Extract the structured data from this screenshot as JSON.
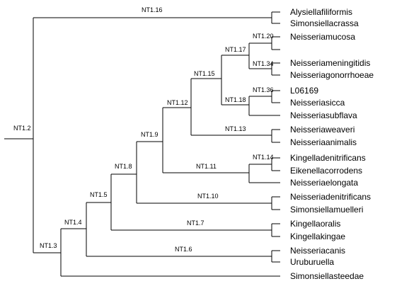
{
  "colors": {
    "line": "#000000",
    "text": "#000000",
    "background": "#ffffff"
  },
  "internal_nodes": {
    "nt1_2": "NT1.2",
    "nt1_3": "NT1.3",
    "nt1_4": "NT1.4",
    "nt1_5": "NT1.5",
    "nt1_6": "NT1.6",
    "nt1_7": "NT1.7",
    "nt1_8": "NT1.8",
    "nt1_9": "NT1.9",
    "nt1_10": "NT1.10",
    "nt1_11": "NT1.11",
    "nt1_12": "NT1.12",
    "nt1_13": "NT1.13",
    "nt1_14": "NT1.14",
    "nt1_15": "NT1.15",
    "nt1_16": "NT1.16",
    "nt1_17": "NT1.17",
    "nt1_18": "NT1.18",
    "nt1_20": "NT1.20",
    "nt1_34": "NT1.34",
    "nt1_36": "NT1.36"
  },
  "leaves": [
    "Alysiellafiliformis",
    "Simonsiellacrassa",
    "Neisseriamucosa",
    "",
    "Neisseriameningitidis",
    "Neisseriagonorrhoeae",
    "L06169",
    "Neisseriasicca",
    "Neisseriasubflava",
    "Neisseriaweaveri",
    "Neisseriaanimalis",
    "Kingelladenitrificans",
    "Eikenellacorrodens",
    "Neisseriaelongata",
    "Neisseriadenitrificans",
    "Simonsiellamuelleri",
    "Kingellaoralis",
    "Kingellakingae",
    "Neisseriacanis",
    "Uruburuella",
    "Simonsiellasteedae"
  ]
}
